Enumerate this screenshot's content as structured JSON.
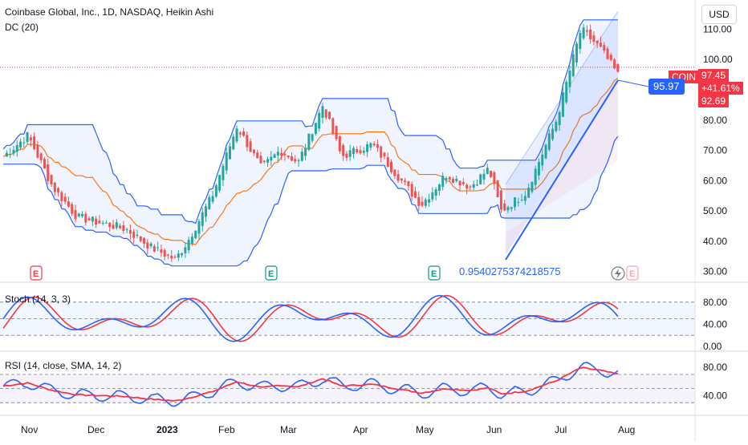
{
  "header": {
    "title": "Coinbase Global, Inc., 1D, NASDAQ, Heikin Ashi",
    "indicator": "DC (20)",
    "currency": "USD"
  },
  "price_axis": {
    "ticks": [
      "110.00",
      "100.00",
      "90.00",
      "80.00",
      "70.00",
      "60.00",
      "50.00",
      "40.00",
      "30.00"
    ]
  },
  "tags": {
    "symbol": "COIN",
    "last_price": "97.45",
    "change_pct": "+41.61%",
    "countdown_price": "92.69",
    "cursor_price": "95.97"
  },
  "fib_label": "0.9540275374218575",
  "events": [
    "E",
    "E",
    "E",
    "E"
  ],
  "stoch": {
    "title": "Stoch (14, 3, 3)",
    "ticks": [
      "80.00",
      "40.00",
      "0.00"
    ]
  },
  "rsi": {
    "title": "RSI (14, close, SMA, 14, 2)",
    "ticks": [
      "80.00",
      "40.00"
    ]
  },
  "time_axis": {
    "labels": [
      "Nov",
      "Dec",
      "2023",
      "Feb",
      "Mar",
      "Apr",
      "May",
      "Jun",
      "Jul",
      "Aug"
    ]
  },
  "colors": {
    "up": "#26a69a",
    "down": "#ef5350",
    "channel": "#2962ff",
    "basis": "#ff6d00",
    "accent_blue": "#2962ff",
    "accent_red": "#f23645"
  },
  "icons": [
    "lightning-icon"
  ],
  "chart_data": {
    "type": "candlestick",
    "title": "Coinbase Global, Inc., 1D, NASDAQ, Heikin Ashi",
    "price_anchors": [
      {
        "t": 0,
        "p": 68
      },
      {
        "t": 0.04,
        "p": 75
      },
      {
        "t": 0.08,
        "p": 58
      },
      {
        "t": 0.12,
        "p": 48
      },
      {
        "t": 0.16,
        "p": 46
      },
      {
        "t": 0.2,
        "p": 44
      },
      {
        "t": 0.24,
        "p": 38
      },
      {
        "t": 0.28,
        "p": 34
      },
      {
        "t": 0.3,
        "p": 40
      },
      {
        "t": 0.34,
        "p": 55
      },
      {
        "t": 0.38,
        "p": 78
      },
      {
        "t": 0.42,
        "p": 64
      },
      {
        "t": 0.45,
        "p": 70
      },
      {
        "t": 0.48,
        "p": 66
      },
      {
        "t": 0.52,
        "p": 85
      },
      {
        "t": 0.55,
        "p": 68
      },
      {
        "t": 0.6,
        "p": 72
      },
      {
        "t": 0.64,
        "p": 62
      },
      {
        "t": 0.68,
        "p": 52
      },
      {
        "t": 0.72,
        "p": 62
      },
      {
        "t": 0.76,
        "p": 58
      },
      {
        "t": 0.79,
        "p": 64
      },
      {
        "t": 0.81,
        "p": 50
      },
      {
        "t": 0.85,
        "p": 56
      },
      {
        "t": 0.9,
        "p": 80
      },
      {
        "t": 0.94,
        "p": 110
      },
      {
        "t": 0.97,
        "p": 104
      },
      {
        "t": 1,
        "p": 95
      }
    ],
    "last": 97.45,
    "change_pct": "+41.61%",
    "y_range": [
      27,
      117
    ]
  }
}
